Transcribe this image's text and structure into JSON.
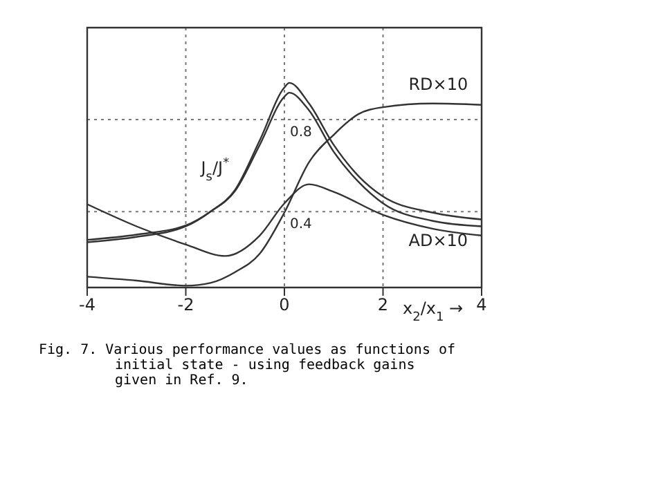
{
  "chart_data": {
    "type": "line",
    "xlabel": "x$_{2}$/x$_{1}$ →",
    "xlim": [
      -4,
      4
    ],
    "xticks": [
      -4,
      -2,
      0,
      2,
      4
    ],
    "ylim": [
      0.07,
      1.2
    ],
    "yticks": [
      0.4,
      0.8
    ],
    "grid": true,
    "x": [
      -4,
      -3,
      -2,
      -1.5,
      -1,
      -0.5,
      0,
      0.1,
      0.5,
      1,
      1.5,
      2,
      3,
      4
    ],
    "series": [
      {
        "color": "#333333",
        "values": [
          0.267,
          0.29,
          0.336,
          0.4,
          0.495,
          0.71,
          0.94,
          0.96,
          0.87,
          0.69,
          0.555,
          0.466,
          0.396,
          0.366
        ]
      },
      {
        "color": "#333333",
        "values": [
          0.277,
          0.3,
          0.34,
          0.4,
          0.49,
          0.69,
          0.9,
          0.917,
          0.84,
          0.66,
          0.53,
          0.436,
          0.36,
          0.336
        ]
      },
      {
        "x": [
          -4,
          -3,
          -2,
          -1.5,
          -1,
          -0.5,
          0,
          0.5,
          1,
          1.5,
          2,
          3,
          4
        ],
        "color": "#333333",
        "values": [
          0.117,
          0.1,
          0.078,
          0.09,
          0.137,
          0.217,
          0.396,
          0.615,
          0.734,
          0.824,
          0.854,
          0.87,
          0.864
        ]
      },
      {
        "x": [
          -4,
          -3,
          -2,
          -1.2,
          -0.5,
          0,
          0.5,
          1,
          2,
          3,
          4
        ],
        "color": "#333333",
        "values": [
          0.432,
          0.336,
          0.257,
          0.207,
          0.296,
          0.436,
          0.519,
          0.486,
          0.386,
          0.326,
          0.296
        ]
      }
    ],
    "annotations": [
      "J$_{s}$/J$^{*}$",
      "RD×10",
      "AD×10",
      "Fig. 7.  Various performance values as functions of initial state - using feedback gains given in Ref. 9."
    ]
  }
}
